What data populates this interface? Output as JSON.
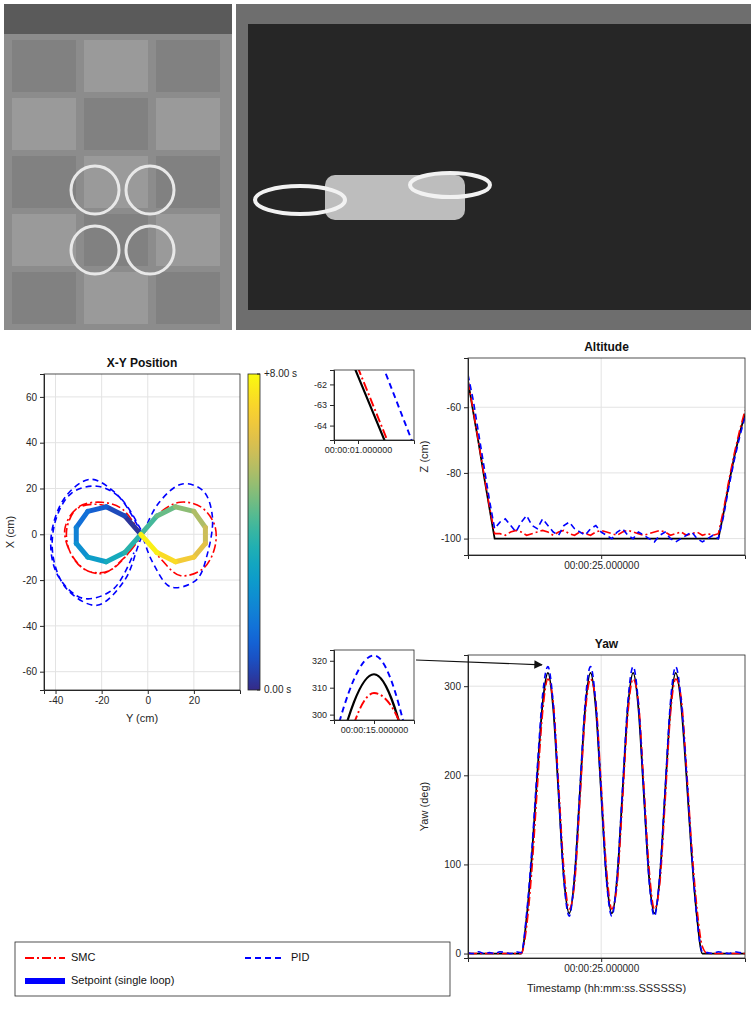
{
  "chart_data": [
    {
      "type": "line",
      "title": "X-Y Position",
      "x_label": "Y (cm)",
      "y_label": "X (cm)",
      "xlim": [
        -45,
        40
      ],
      "ylim": [
        -68,
        70
      ],
      "xticks": [
        -40,
        -20,
        0,
        20
      ],
      "yticks": [
        -60,
        -40,
        -20,
        0,
        20,
        40,
        60
      ],
      "grid": true,
      "legend": "bottom",
      "series": [
        {
          "name": "SMC",
          "color": "#ff0000",
          "line_style": "dashdot",
          "x": [
            -3,
            -11,
            -20,
            -30,
            -35,
            -34,
            -28,
            -19,
            -10,
            -2,
            6,
            14,
            23,
            29,
            29,
            24,
            14,
            5,
            -3,
            -12,
            -21,
            -31,
            -36,
            -33,
            -26,
            -17,
            -9,
            -3
          ],
          "values": [
            0,
            11,
            14,
            12,
            3,
            -7,
            -15,
            -17,
            -10,
            0,
            10,
            14,
            12,
            4,
            -6,
            -15,
            -18,
            -10,
            0,
            9,
            13,
            11,
            2,
            -9,
            -16,
            -16,
            -9,
            0
          ]
        },
        {
          "name": "PID",
          "color": "#0000ff",
          "line_style": "dashed",
          "x": [
            -3,
            -12,
            -22,
            -33,
            -40,
            -41,
            -35,
            -22,
            -10,
            -3,
            5,
            15,
            24,
            28,
            26,
            21,
            10,
            2,
            -4,
            -14,
            -25,
            -36,
            -42,
            -39,
            -28,
            -15,
            -6
          ],
          "values": [
            2,
            16,
            21,
            18,
            6,
            -10,
            -24,
            -31,
            -20,
            -2,
            14,
            22,
            19,
            8,
            -8,
            -20,
            -23,
            -12,
            3,
            18,
            24,
            16,
            -2,
            -18,
            -28,
            -24,
            -8
          ]
        },
        {
          "name": "Setpoint (single loop)",
          "color": "#0000ff",
          "line_style": "solid",
          "x": [
            -3,
            -10,
            -18,
            -26,
            -31,
            -31,
            -26,
            -18,
            -10,
            -3,
            4,
            12,
            20,
            25,
            25,
            20,
            12,
            4,
            -3
          ],
          "values": [
            0,
            8,
            12,
            10,
            3,
            -4,
            -10,
            -12,
            -8,
            0,
            8,
            12,
            10,
            3,
            -4,
            -10,
            -12,
            -8,
            0
          ],
          "t": [
            0,
            0.44,
            0.89,
            1.33,
            1.78,
            2.22,
            2.67,
            3.11,
            3.56,
            4,
            4.44,
            4.89,
            5.33,
            5.78,
            6.22,
            6.67,
            7.11,
            7.56,
            8
          ]
        }
      ],
      "colorbar": {
        "range": [
          0,
          8
        ],
        "ticks": [
          {
            "value": 0,
            "label": "0.00 s"
          },
          {
            "value": 8,
            "label": "+8.00 s"
          }
        ]
      }
    },
    {
      "type": "line",
      "title": "Altitude",
      "y_label": "Z (cm)",
      "x": [
        0,
        1,
        2,
        3,
        4,
        5,
        6,
        7,
        8,
        9,
        10,
        11,
        12,
        13,
        14,
        15,
        16,
        17,
        18,
        19,
        20,
        21,
        22,
        23,
        24,
        25,
        26,
        27,
        28,
        29,
        30,
        31,
        32,
        33,
        34,
        35,
        36,
        37,
        38,
        39,
        40,
        41,
        42,
        43,
        44,
        45,
        46,
        47,
        48,
        49,
        50,
        51,
        52
      ],
      "xlim": [
        0,
        52
      ],
      "ylim": [
        -105,
        -45
      ],
      "xticks": [
        {
          "value": 25,
          "label": "00:00:25.000000"
        }
      ],
      "yticks": [
        -100,
        -80,
        -60
      ],
      "grid": true,
      "series": [
        {
          "color": "#000000",
          "line_style": "solid",
          "values": [
            -52,
            -61.6,
            -71,
            -81,
            -90.5,
            -100,
            -100,
            -100,
            -100,
            -100,
            -100,
            -100,
            -100,
            -100,
            -100,
            -100,
            -100,
            -100,
            -100,
            -100,
            -100,
            -100,
            -100,
            -100,
            -100,
            -100,
            -100,
            -100,
            -100,
            -100,
            -100,
            -100,
            -100,
            -100,
            -100,
            -100,
            -100,
            -100,
            -100,
            -100,
            -100,
            -100,
            -100,
            -100,
            -100,
            -100,
            -100,
            -100,
            -92,
            -83,
            -75,
            -68,
            -62
          ]
        },
        {
          "color": "#ff0000",
          "line_style": "dashdot",
          "values": [
            -52,
            -61.2,
            -70.8,
            -80.5,
            -90,
            -98.5,
            -98.5,
            -99,
            -98,
            -97.5,
            -98,
            -99,
            -98.5,
            -98,
            -97.5,
            -98,
            -99,
            -98,
            -97.5,
            -98.5,
            -99,
            -98,
            -98.5,
            -99,
            -98,
            -97.5,
            -98,
            -98.5,
            -99,
            -98,
            -97.5,
            -98,
            -98.5,
            -99,
            -98.5,
            -98,
            -97.5,
            -98,
            -99,
            -98.5,
            -98,
            -99,
            -98.5,
            -98,
            -99,
            -98.5,
            -99,
            -98.5,
            -91,
            -82,
            -74,
            -67,
            -61
          ]
        },
        {
          "color": "#0000ff",
          "line_style": "dashed",
          "values": [
            -50,
            -58,
            -68,
            -78,
            -88,
            -97,
            -95,
            -94,
            -96,
            -98,
            -95,
            -93,
            -96,
            -97,
            -94,
            -96,
            -98,
            -99,
            -96,
            -95,
            -97,
            -98,
            -99,
            -97,
            -96,
            -98,
            -99,
            -100,
            -98,
            -97,
            -99,
            -100,
            -98,
            -99,
            -100,
            -101,
            -99,
            -98,
            -100,
            -101,
            -100,
            -99,
            -98,
            -100,
            -101,
            -100,
            -99,
            -100,
            -93,
            -84,
            -76,
            -69,
            -63
          ]
        }
      ],
      "inset": {
        "xlim": [
          0.7,
          1.7
        ],
        "ylim": [
          -64.7,
          -61.3
        ],
        "xticks": [
          {
            "value": 1,
            "label": "00:00:01.000000"
          }
        ],
        "yticks": [
          -64,
          -63,
          -62
        ]
      }
    },
    {
      "type": "line",
      "title": "Yaw",
      "x_label": "Timestamp (hh:mm:ss.SSSSSS)",
      "y_label": "Yaw (deg)",
      "x": [
        0,
        1,
        2,
        3,
        4,
        5,
        6,
        7,
        8,
        9,
        10,
        11,
        12,
        13,
        14,
        15,
        16,
        17,
        18,
        19,
        20,
        21,
        22,
        23,
        24,
        25,
        26,
        27,
        28,
        29,
        30,
        31,
        32,
        33,
        34,
        35,
        36,
        37,
        38,
        39,
        40,
        41,
        42,
        43,
        44,
        45,
        46,
        47,
        48,
        49,
        50,
        51,
        52
      ],
      "xlim": [
        0,
        52
      ],
      "ylim": [
        -5,
        335
      ],
      "xticks": [
        {
          "value": 25,
          "label": "00:00:25.000000"
        }
      ],
      "yticks": [
        0,
        100,
        200,
        300
      ],
      "grid": true,
      "series": [
        {
          "color": "#000000",
          "line_style": "solid",
          "values": [
            0,
            0,
            0,
            0,
            0,
            0,
            0,
            0,
            0,
            0,
            0,
            40,
            110,
            200,
            280,
            315,
            275,
            180,
            85,
            45,
            85,
            180,
            275,
            315,
            275,
            180,
            85,
            45,
            85,
            180,
            275,
            315,
            275,
            180,
            85,
            45,
            85,
            180,
            275,
            315,
            280,
            200,
            110,
            40,
            0,
            0,
            0,
            0,
            0,
            0,
            0,
            0,
            0
          ]
        },
        {
          "color": "#ff0000",
          "line_style": "dashdot",
          "values": [
            0,
            0,
            0,
            0,
            0,
            0,
            0,
            0,
            0,
            0,
            0,
            30,
            95,
            185,
            270,
            308,
            282,
            190,
            95,
            50,
            78,
            170,
            268,
            308,
            282,
            190,
            95,
            50,
            78,
            170,
            268,
            308,
            282,
            190,
            95,
            50,
            78,
            170,
            268,
            308,
            288,
            210,
            120,
            50,
            8,
            0,
            0,
            0,
            0,
            0,
            0,
            0,
            0
          ]
        },
        {
          "color": "#0000ff",
          "line_style": "dashed",
          "values": [
            1,
            0,
            2,
            0,
            1,
            0,
            2,
            1,
            0,
            2,
            1,
            45,
            118,
            208,
            290,
            322,
            280,
            182,
            82,
            42,
            88,
            184,
            282,
            322,
            280,
            182,
            82,
            42,
            88,
            184,
            282,
            322,
            280,
            182,
            82,
            42,
            88,
            184,
            282,
            322,
            285,
            205,
            112,
            38,
            2,
            1,
            0,
            2,
            1,
            0,
            2,
            1,
            0
          ]
        }
      ],
      "inset": {
        "xlim": [
          14,
          16
        ],
        "ylim": [
          298,
          324
        ],
        "xticks": [
          {
            "value": 15,
            "label": "00:00:15.000000"
          }
        ],
        "yticks": [
          300,
          310,
          320
        ]
      }
    }
  ]
}
